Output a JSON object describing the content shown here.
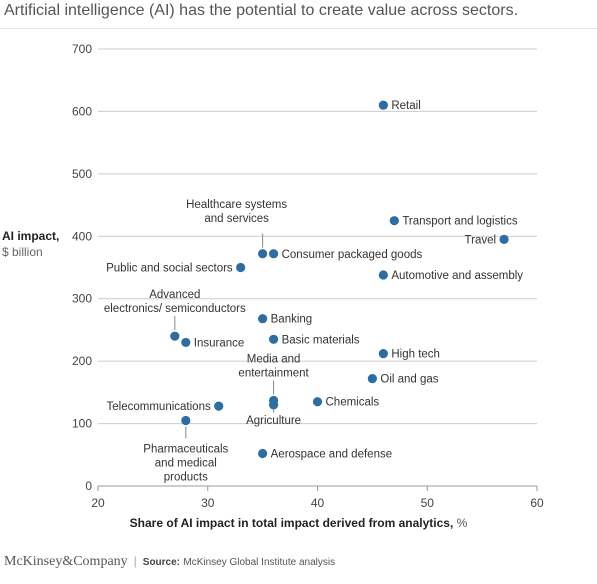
{
  "header": {
    "title": "Artificial intelligence (AI) has the potential to create value across sectors."
  },
  "axes": {
    "ylabel_line1": "AI impact,",
    "ylabel_line2": "$ billion",
    "xlabel_main": "Share of AI impact in total impact derived from analytics,",
    "xlabel_unit": "%"
  },
  "footer": {
    "brand": "McKinsey&Company",
    "source_label": "Source:",
    "source_text": "McKinsey Global Institute analysis"
  },
  "colors": {
    "point": "#2e6ca4",
    "grid": "#cccccc",
    "text": "#333333",
    "leader": "#888888"
  },
  "chart_data": {
    "type": "scatter",
    "title": "Artificial intelligence (AI) has the potential to create value across sectors.",
    "xlabel": "Share of AI impact in total impact derived from analytics, %",
    "ylabel": "AI impact, $ billion",
    "xlim": [
      20,
      60
    ],
    "ylim": [
      0,
      700
    ],
    "xticks": [
      20,
      30,
      40,
      50,
      60
    ],
    "yticks": [
      0,
      100,
      200,
      300,
      400,
      500,
      600,
      700
    ],
    "grid": "y-only",
    "points": [
      {
        "label": "Retail",
        "x": 46,
        "y": 610
      },
      {
        "label": "Transport and logistics",
        "x": 47,
        "y": 425
      },
      {
        "label": "Travel",
        "x": 57,
        "y": 395
      },
      {
        "label": "Healthcare systems and services",
        "x": 35,
        "y": 372
      },
      {
        "label": "Consumer packaged goods",
        "x": 36,
        "y": 372
      },
      {
        "label": "Public and social sectors",
        "x": 33,
        "y": 350
      },
      {
        "label": "Automotive and assembly",
        "x": 46,
        "y": 338
      },
      {
        "label": "Banking",
        "x": 35,
        "y": 268
      },
      {
        "label": "Advanced electronics/ semiconductors",
        "x": 27,
        "y": 240
      },
      {
        "label": "Insurance",
        "x": 28,
        "y": 230
      },
      {
        "label": "Basic materials",
        "x": 36,
        "y": 235
      },
      {
        "label": "High tech",
        "x": 46,
        "y": 212
      },
      {
        "label": "Oil and gas",
        "x": 45,
        "y": 172
      },
      {
        "label": "Media and entertainment",
        "x": 36,
        "y": 137
      },
      {
        "label": "Agriculture",
        "x": 36,
        "y": 130
      },
      {
        "label": "Chemicals",
        "x": 40,
        "y": 135
      },
      {
        "label": "Telecommunications",
        "x": 31,
        "y": 128
      },
      {
        "label": "Pharmaceuticals and medical products",
        "x": 28,
        "y": 105
      },
      {
        "label": "Aerospace and defense",
        "x": 35,
        "y": 52
      }
    ]
  }
}
